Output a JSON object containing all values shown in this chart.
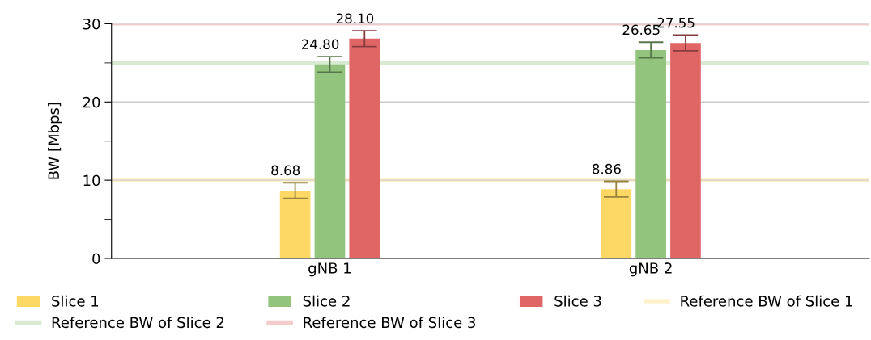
{
  "chart_data": {
    "type": "bar",
    "ylabel": "BW [Mbps]",
    "categories": [
      "gNB 1",
      "gNB 2"
    ],
    "series": [
      {
        "name": "Slice 1",
        "color": "#fdd865",
        "values": [
          8.68,
          8.86
        ],
        "errors": [
          1.0,
          1.0
        ],
        "value_labels": [
          "8.68",
          "8.86"
        ]
      },
      {
        "name": "Slice 2",
        "color": "#93c47d",
        "values": [
          24.8,
          26.65
        ],
        "errors": [
          1.0,
          1.0
        ],
        "value_labels": [
          "24.80",
          "26.65"
        ]
      },
      {
        "name": "Slice 3",
        "color": "#e06666",
        "values": [
          28.1,
          27.55
        ],
        "errors": [
          1.0,
          1.0
        ],
        "value_labels": [
          "28.10",
          "27.55"
        ]
      }
    ],
    "ref_lines": [
      {
        "axis": "y",
        "value": 10,
        "label": "Reference BW of Slice 1",
        "color": "#fff2cc"
      },
      {
        "axis": "y",
        "value": 25,
        "label": "Reference BW of Slice 2",
        "color": "#d9ead3"
      },
      {
        "axis": "y",
        "value": 30,
        "label": "Reference BW of Slice 3",
        "color": "#f4cccc"
      }
    ],
    "ylim": [
      0,
      30
    ],
    "yticks": [
      0,
      {
        "value": 5,
        "label": null
      },
      10,
      {
        "value": 15,
        "label": null
      },
      20,
      {
        "value": 25,
        "label": null
      },
      30
    ],
    "grid": "y",
    "legend": "bottom"
  }
}
